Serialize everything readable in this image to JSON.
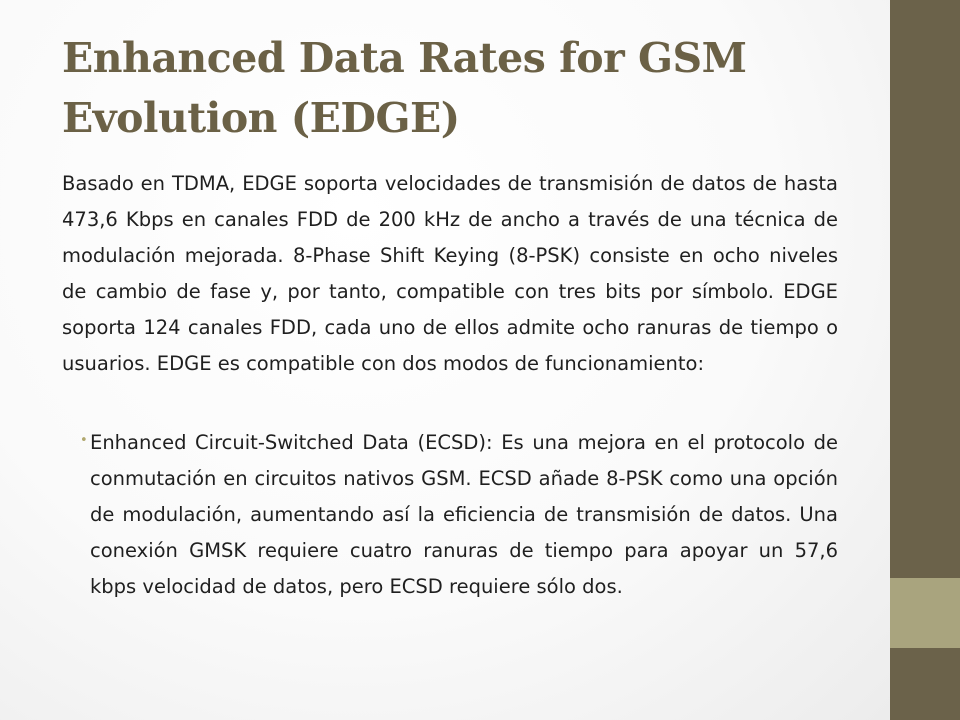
{
  "slide": {
    "title": "Enhanced Data Rates for GSM Evolution (EDGE)",
    "paragraph": "Basado en TDMA, EDGE soporta velocidades de transmisión de datos de hasta 473,6 Kbps en canales FDD de 200 kHz de ancho a través de una técnica de modulación mejorada. 8-Phase Shift Keying (8-PSK) consiste en ocho niveles de cambio de fase y, por tanto, compatible con tres bits por símbolo. EDGE soporta 124 canales FDD, cada uno de ellos admite ocho ranuras de tiempo o usuarios. EDGE es compatible con dos modos de funcionamiento:",
    "bullets": [
      {
        "marker": "•",
        "text": "Enhanced Circuit-Switched Data (ECSD): Es una mejora en el protocolo de conmutación en circuitos nativos GSM. ECSD añade 8-PSK como una opción de modulación, aumentando así la eficiencia de transmisión de datos. Una conexión GMSK requiere cuatro ranuras de tiempo para apoyar un 57,6 kbps velocidad de datos, pero ECSD requiere sólo dos."
      }
    ]
  },
  "theme": {
    "accent_dark": "#6b624a",
    "accent_light": "#a9a47e",
    "title_color": "#6b6146",
    "bullet_color": "#b1a86f"
  }
}
